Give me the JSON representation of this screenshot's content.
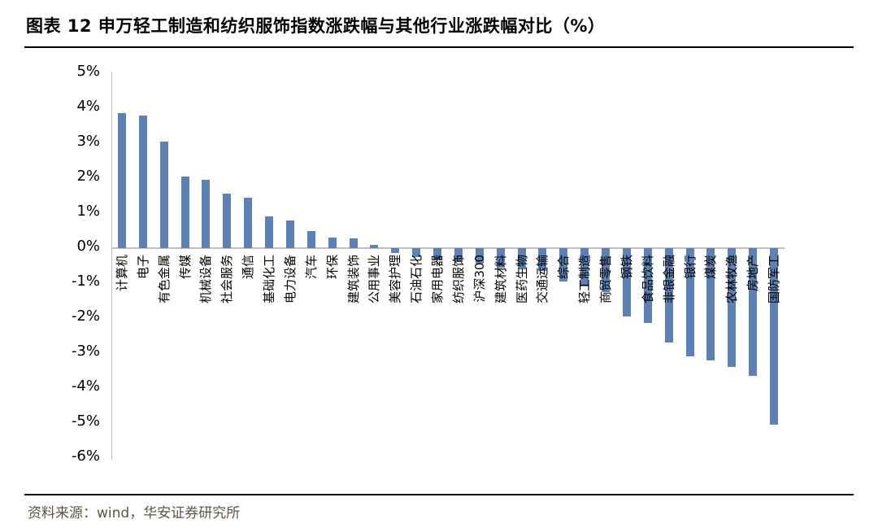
{
  "header": {
    "title": "图表 12 申万轻工制造和纺织服饰指数涨跌幅与其他行业涨跌幅对比（%）"
  },
  "footer": {
    "source": "资料来源：wind，华安证券研究所"
  },
  "chart_data": {
    "type": "bar",
    "title": "申万轻工制造和纺织服饰指数涨跌幅与其他行业涨跌幅对比（%）",
    "categories": [
      "计算机",
      "电子",
      "有色金属",
      "传媒",
      "机械设备",
      "社会服务",
      "通信",
      "基础化工",
      "电力设备",
      "汽车",
      "环保",
      "建筑装饰",
      "公用事业",
      "美容护理",
      "石油石化",
      "家用电器",
      "纺织服饰",
      "沪深300",
      "建筑材料",
      "医药生物",
      "交通运输",
      "综合",
      "轻工制造",
      "商贸零售",
      "钢铁",
      "食品饮料",
      "非银金融",
      "银行",
      "煤炭",
      "农林牧渔",
      "房地产",
      "国防军工"
    ],
    "values": [
      3.85,
      3.8,
      3.05,
      2.05,
      1.95,
      1.55,
      1.45,
      0.9,
      0.8,
      0.5,
      0.3,
      0.28,
      0.1,
      -0.15,
      -0.25,
      -0.35,
      -0.4,
      -0.45,
      -0.55,
      -0.6,
      -0.65,
      -0.95,
      -1.1,
      -1.25,
      -1.95,
      -2.15,
      -2.7,
      -3.1,
      -3.2,
      -3.4,
      -3.65,
      -5.05
    ],
    "xlabel": "",
    "ylabel": "",
    "ylim": [
      -6,
      5
    ],
    "y_ticks": [
      "5%",
      "4%",
      "3%",
      "2%",
      "1%",
      "0%",
      "-1%",
      "-2%",
      "-3%",
      "-4%",
      "-5%",
      "-6%"
    ],
    "grid": false,
    "legend": "none",
    "bar_color": "#5b81b5",
    "axis_color": "#bfbfbf"
  }
}
